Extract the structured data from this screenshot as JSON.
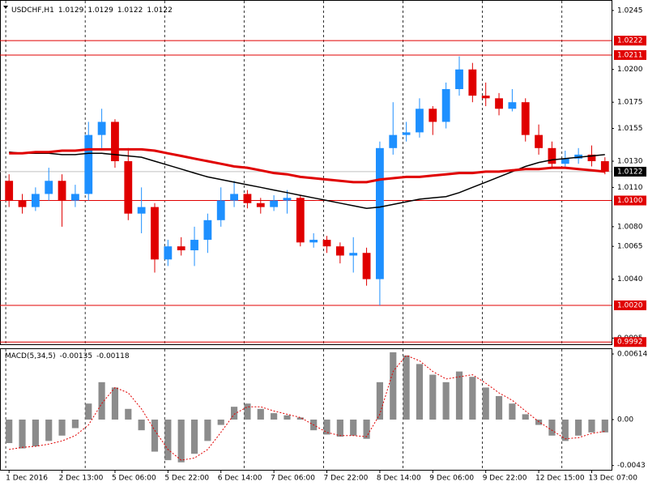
{
  "chart_data": [
    {
      "type": "candlestick",
      "title": "USDCHF,H1",
      "header_values": [
        1.0129,
        1.0129,
        1.0122,
        1.0122
      ],
      "categories": [
        "1 Dec 2016",
        null,
        null,
        null,
        "2 Dec 13:00",
        null,
        null,
        null,
        "5 Dec 06:00",
        null,
        null,
        null,
        "5 Dec 22:00",
        null,
        null,
        null,
        "6 Dec 14:00",
        null,
        null,
        null,
        "7 Dec 06:00",
        null,
        null,
        null,
        "7 Dec 22:00",
        null,
        null,
        null,
        "8 Dec 14:00",
        null,
        null,
        null,
        "9 Dec 06:00",
        null,
        null,
        null,
        "9 Dec 22:00",
        null,
        null,
        null,
        "12 Dec 15:00",
        null,
        null,
        null,
        "13 Dec 07:00",
        null
      ],
      "open": [
        1.0115,
        1.01,
        1.0095,
        1.0105,
        1.0115,
        1.01,
        1.0105,
        1.015,
        1.016,
        1.013,
        1.009,
        1.0095,
        1.0055,
        1.0065,
        1.0062,
        1.007,
        1.0085,
        1.01,
        1.0105,
        1.0098,
        1.0095,
        1.01,
        1.0102,
        1.0068,
        1.007,
        1.0065,
        1.0058,
        1.006,
        1.004,
        1.014,
        1.015,
        1.0152,
        1.017,
        1.016,
        1.0185,
        1.02,
        1.018,
        1.0178,
        1.017,
        1.0175,
        1.015,
        1.014,
        1.0128,
        1.0132,
        1.0135,
        1.013
      ],
      "high": [
        1.012,
        1.0105,
        1.011,
        1.0125,
        1.012,
        1.0112,
        1.016,
        1.017,
        1.0162,
        1.014,
        1.011,
        1.0098,
        1.007,
        1.0072,
        1.008,
        1.009,
        1.011,
        1.0115,
        1.0108,
        1.0102,
        1.0104,
        1.0108,
        1.0104,
        1.0075,
        1.0073,
        1.0068,
        1.0072,
        1.0064,
        1.0145,
        1.0175,
        1.016,
        1.0178,
        1.0172,
        1.019,
        1.021,
        1.0205,
        1.019,
        1.0182,
        1.0185,
        1.0178,
        1.0158,
        1.0145,
        1.0138,
        1.014,
        1.0142,
        1.0133
      ],
      "low": [
        1.0095,
        1.009,
        1.0092,
        1.01,
        1.008,
        1.0095,
        1.01,
        1.014,
        1.0125,
        1.0085,
        1.0075,
        1.0045,
        1.005,
        1.0058,
        1.005,
        1.006,
        1.008,
        1.0095,
        1.0094,
        1.009,
        1.0092,
        1.009,
        1.0065,
        1.0064,
        1.006,
        1.0052,
        1.0045,
        1.0035,
        1.002,
        1.0135,
        1.0145,
        1.0148,
        1.015,
        1.0155,
        1.018,
        1.0175,
        1.0172,
        1.0165,
        1.0168,
        1.0145,
        1.0135,
        1.0125,
        1.0126,
        1.0128,
        1.0126,
        1.012
      ],
      "close": [
        1.01,
        1.0095,
        1.0105,
        1.0115,
        1.01,
        1.0105,
        1.015,
        1.016,
        1.013,
        1.009,
        1.0095,
        1.0055,
        1.0065,
        1.0062,
        1.007,
        1.0085,
        1.01,
        1.0105,
        1.0098,
        1.0095,
        1.01,
        1.0102,
        1.0068,
        1.007,
        1.0065,
        1.0058,
        1.006,
        1.004,
        1.014,
        1.015,
        1.0152,
        1.017,
        1.016,
        1.0185,
        1.02,
        1.018,
        1.0178,
        1.017,
        1.0175,
        1.015,
        1.014,
        1.0128,
        1.0132,
        1.0135,
        1.013,
        1.0122
      ],
      "up_color": "#1e90ff",
      "down_color": "#e00000",
      "moving_averages": [
        {
          "color": "#000000",
          "values": [
            1.0137,
            1.0136,
            1.0136,
            1.0136,
            1.0135,
            1.0135,
            1.0136,
            1.0136,
            1.0135,
            1.0134,
            1.0133,
            1.013,
            1.0127,
            1.0124,
            1.0121,
            1.0118,
            1.0116,
            1.0114,
            1.0112,
            1.011,
            1.0108,
            1.0106,
            1.0104,
            1.0102,
            1.01,
            1.0098,
            1.0096,
            1.0094,
            1.0095,
            1.0097,
            1.0099,
            1.0101,
            1.0102,
            1.0103,
            1.0106,
            1.011,
            1.0114,
            1.0118,
            1.0122,
            1.0126,
            1.0129,
            1.0131,
            1.0132,
            1.0133,
            1.0134,
            1.0135
          ]
        },
        {
          "color": "#e00000",
          "values": [
            1.0136,
            1.0136,
            1.0137,
            1.0137,
            1.0138,
            1.0138,
            1.0139,
            1.0139,
            1.0139,
            1.0139,
            1.0139,
            1.0138,
            1.0136,
            1.0134,
            1.0132,
            1.013,
            1.0128,
            1.0126,
            1.0125,
            1.0123,
            1.0121,
            1.012,
            1.0118,
            1.0117,
            1.0116,
            1.0115,
            1.0114,
            1.0114,
            1.0116,
            1.0117,
            1.0118,
            1.0118,
            1.0119,
            1.012,
            1.0121,
            1.0121,
            1.0122,
            1.0122,
            1.0123,
            1.0124,
            1.0124,
            1.0125,
            1.0125,
            1.0124,
            1.0123,
            1.0122
          ]
        }
      ],
      "ylim": [
        0.99903,
        1.0253
      ],
      "yticks": [
        {
          "value": 1.0245,
          "label": "1.0245"
        },
        {
          "value": 1.02,
          "label": "1.0200"
        },
        {
          "value": 1.0175,
          "label": "1.0175"
        },
        {
          "value": 1.0155,
          "label": "1.0155"
        },
        {
          "value": 1.013,
          "label": "1.0130"
        },
        {
          "value": 1.011,
          "label": "1.0110"
        },
        {
          "value": 1.008,
          "label": "1.0080"
        },
        {
          "value": 1.0065,
          "label": "1.0065"
        },
        {
          "value": 1.004,
          "label": "1.0040"
        },
        {
          "value": 0.9995,
          "label": "0.9995"
        }
      ],
      "levels": [
        {
          "value": 1.0222,
          "label": "1.0222"
        },
        {
          "value": 1.0211,
          "label": "1.0211"
        },
        {
          "value": 1.01,
          "label": "1.0100"
        },
        {
          "value": 1.002,
          "label": "1.0020"
        },
        {
          "value": 0.9992,
          "label": "0.9992"
        }
      ],
      "level_color": "#e00000",
      "last_price": 1.0122
    },
    {
      "type": "macd",
      "title": "MACD(5,34,5)",
      "header_values": [
        -0.00135,
        -0.00118
      ],
      "histogram": {
        "color": "#8c8c8c",
        "values": [
          -0.0022,
          -0.0027,
          -0.0025,
          -0.002,
          -0.0015,
          -0.0008,
          0.0015,
          0.0035,
          0.003,
          0.001,
          -0.001,
          -0.003,
          -0.0038,
          -0.004,
          -0.0032,
          -0.002,
          -0.0005,
          0.0012,
          0.0015,
          0.001,
          0.0006,
          0.0004,
          0.0002,
          -0.001,
          -0.0014,
          -0.0016,
          -0.0015,
          -0.0018,
          0.0035,
          0.0063,
          0.006,
          0.0052,
          0.0042,
          0.0035,
          0.0045,
          0.004,
          0.003,
          0.0022,
          0.0015,
          0.0005,
          -0.0005,
          -0.0015,
          -0.002,
          -0.0015,
          -0.0012,
          -0.0012
        ]
      },
      "signal": {
        "color": "#e00000",
        "values": [
          -0.0028,
          -0.0026,
          -0.0025,
          -0.0023,
          -0.002,
          -0.0015,
          -0.0005,
          0.0015,
          0.003,
          0.0025,
          0.001,
          -0.001,
          -0.0028,
          -0.0038,
          -0.0036,
          -0.0028,
          -0.0012,
          0.0005,
          0.0012,
          0.0012,
          0.0008,
          0.0005,
          0.0002,
          -0.0005,
          -0.0012,
          -0.0015,
          -0.0015,
          -0.0016,
          0.0005,
          0.0045,
          0.006,
          0.0055,
          0.0045,
          0.0038,
          0.004,
          0.0042,
          0.0034,
          0.0025,
          0.0018,
          0.0008,
          -0.0002,
          -0.001,
          -0.0018,
          -0.0017,
          -0.0013,
          -0.0011
        ]
      },
      "ylim": [
        -0.0047,
        0.00667
      ],
      "yticks": [
        0.00614,
        {
          "value": 0,
          "label": "0.00"
        },
        -0.0043
      ]
    }
  ]
}
